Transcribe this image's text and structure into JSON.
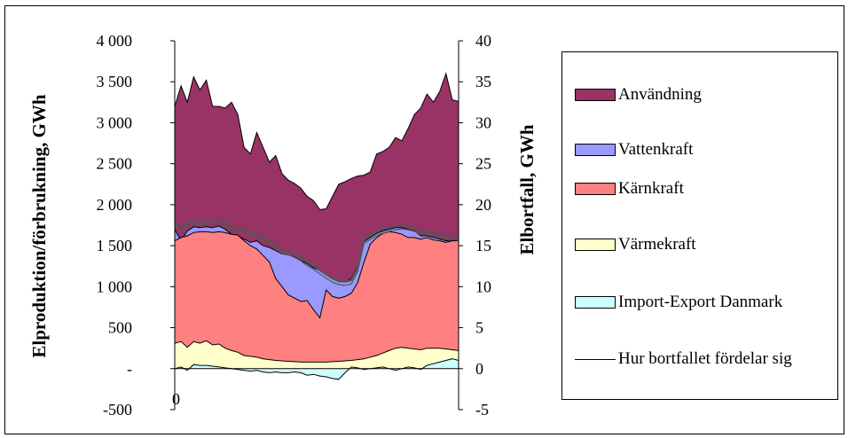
{
  "chart_data": {
    "type": "area",
    "title": "",
    "ylabel": "Elproduktion/förbrukning, GWh",
    "y2label": "Elbortfall, GWh",
    "xlabel": "",
    "x_tick_labels": [
      "0"
    ],
    "left_axis": {
      "ylim": [
        -500,
        4000
      ],
      "ticks": [
        {
          "value": 4000,
          "label": "4 000"
        },
        {
          "value": 3500,
          "label": "3 500"
        },
        {
          "value": 3000,
          "label": "3 000"
        },
        {
          "value": 2500,
          "label": "2 500"
        },
        {
          "value": 2000,
          "label": "2 000"
        },
        {
          "value": 1500,
          "label": "1 500"
        },
        {
          "value": 1000,
          "label": "1 000"
        },
        {
          "value": 500,
          "label": "500"
        },
        {
          "value": 0,
          "label": "-"
        },
        {
          "value": -500,
          "label": "-500"
        }
      ]
    },
    "right_axis": {
      "ylim": [
        -5,
        40
      ],
      "ticks": [
        {
          "value": 40,
          "label": "40"
        },
        {
          "value": 35,
          "label": "35"
        },
        {
          "value": 30,
          "label": "30"
        },
        {
          "value": 25,
          "label": "25"
        },
        {
          "value": 20,
          "label": "20"
        },
        {
          "value": 15,
          "label": "15"
        },
        {
          "value": 10,
          "label": "10"
        },
        {
          "value": 5,
          "label": "5"
        },
        {
          "value": 0,
          "label": "0"
        },
        {
          "value": -5,
          "label": "-5"
        }
      ]
    },
    "x_range": [
      1,
      52
    ],
    "series": [
      {
        "name": "Användning",
        "color": "#993366",
        "values": [
          3200,
          3450,
          3250,
          3560,
          3400,
          3520,
          3200,
          3200,
          3180,
          3250,
          3100,
          2700,
          2620,
          2880,
          2700,
          2520,
          2600,
          2380,
          2300,
          2260,
          2200,
          2100,
          2050,
          1940,
          1950,
          2100,
          2250,
          2280,
          2320,
          2350,
          2360,
          2400,
          2620,
          2650,
          2700,
          2820,
          2780,
          2930,
          3100,
          3180,
          3350,
          3250,
          3380,
          3600,
          3280,
          3260
        ]
      },
      {
        "name": "Vattenkraft",
        "color": "#9999ff",
        "values": [
          1700,
          1560,
          1680,
          1730,
          1720,
          1730,
          1720,
          1740,
          1700,
          1640,
          1620,
          1580,
          1540,
          1560,
          1500,
          1480,
          1440,
          1400,
          1390,
          1360,
          1320,
          1280,
          1230,
          1200,
          1150,
          1100,
          1060,
          1060,
          1100,
          1250,
          1550,
          1600,
          1650,
          1680,
          1700,
          1720,
          1720,
          1700,
          1680,
          1620,
          1620,
          1600,
          1580,
          1560,
          1570,
          1560
        ]
      },
      {
        "name": "Kärnkraft",
        "color": "#ff8080",
        "values": [
          1560,
          1600,
          1620,
          1660,
          1670,
          1670,
          1660,
          1670,
          1660,
          1640,
          1630,
          1560,
          1500,
          1460,
          1380,
          1300,
          1100,
          1000,
          900,
          860,
          820,
          830,
          720,
          620,
          960,
          880,
          860,
          880,
          920,
          1050,
          1300,
          1520,
          1600,
          1650,
          1670,
          1660,
          1640,
          1600,
          1600,
          1580,
          1600,
          1570,
          1560,
          1540,
          1560,
          1560
        ]
      },
      {
        "name": "Värmekraft",
        "color": "#ffffcc",
        "values": [
          310,
          330,
          260,
          330,
          310,
          340,
          290,
          300,
          250,
          220,
          200,
          160,
          150,
          140,
          120,
          110,
          100,
          95,
          90,
          85,
          80,
          80,
          80,
          80,
          80,
          85,
          90,
          95,
          100,
          110,
          120,
          140,
          160,
          190,
          220,
          250,
          260,
          250,
          240,
          230,
          250,
          250,
          250,
          240,
          230,
          220
        ]
      },
      {
        "name": "Import-Export Danmark",
        "color": "#ccffff",
        "values": [
          0,
          20,
          -20,
          50,
          40,
          40,
          30,
          20,
          10,
          0,
          -10,
          -20,
          -30,
          -20,
          -40,
          -50,
          -40,
          -50,
          -50,
          -40,
          -50,
          -80,
          -70,
          -90,
          -100,
          -120,
          -130,
          -50,
          20,
          10,
          -10,
          0,
          10,
          20,
          0,
          -20,
          0,
          20,
          10,
          -10,
          40,
          60,
          80,
          100,
          120,
          100
        ]
      },
      {
        "name": "Hur bortfallet fördelar sig",
        "color": "#000000",
        "values": [
          1780,
          1720,
          1770,
          1800,
          1800,
          1800,
          1790,
          1810,
          1780,
          1730,
          1720,
          1700,
          1660,
          1660,
          1600,
          1560,
          1500,
          1450,
          1440,
          1400,
          1360,
          1300,
          1260,
          1200,
          1150,
          1100,
          1070,
          1060,
          1080,
          1230,
          1570,
          1620,
          1670,
          1700,
          1720,
          1740,
          1750,
          1740,
          1720,
          1680,
          1680,
          1660,
          1640,
          1620,
          1620,
          1610
        ]
      }
    ],
    "grid": false,
    "legend_placement": "right"
  }
}
